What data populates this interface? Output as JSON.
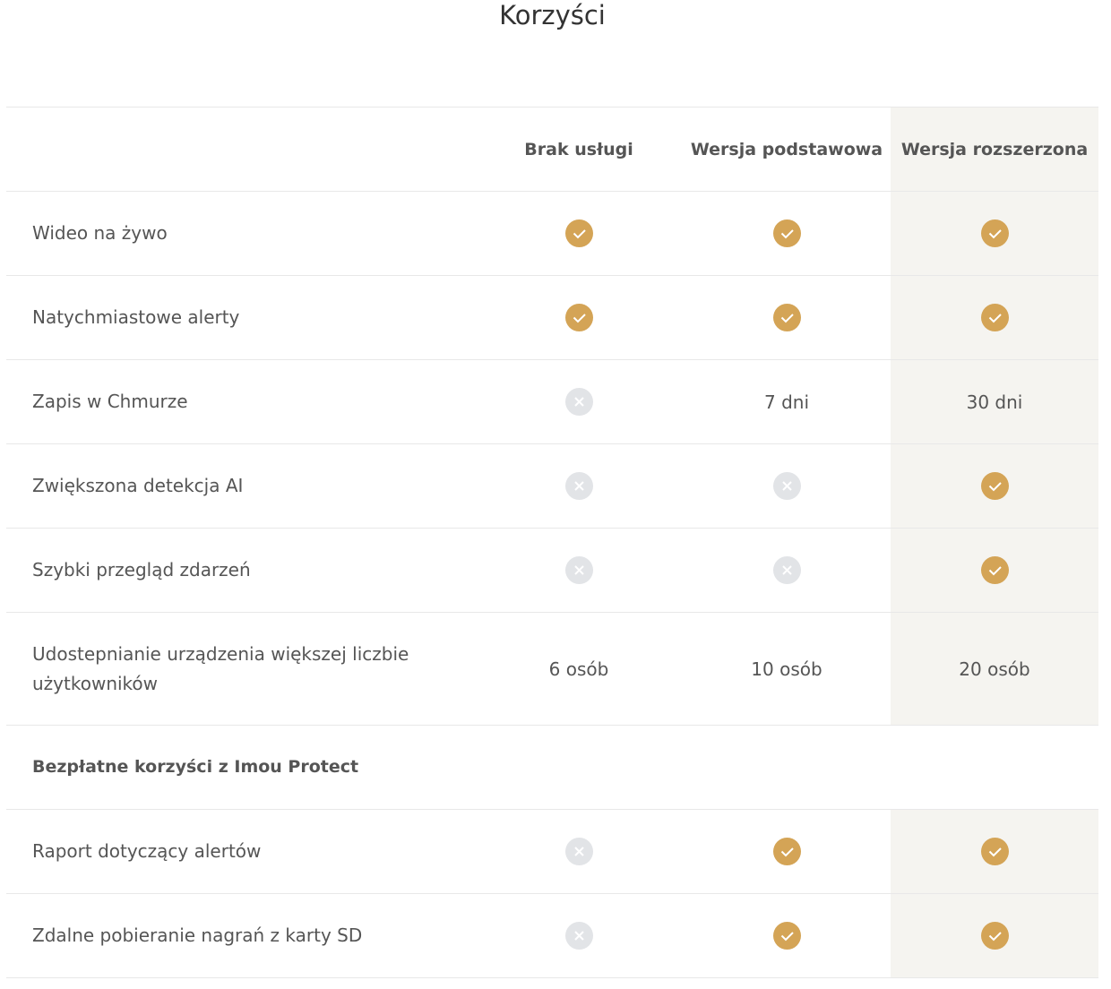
{
  "title": "Korzyści",
  "colors": {
    "accent": "#d4a456",
    "unavailable": "#e2e4e7",
    "highlight": "#f5f4f0"
  },
  "columns": [
    "Brak usługi",
    "Wersja podstawowa",
    "Wersja rozszerzona"
  ],
  "rows": [
    {
      "label": "Wideo na żywo",
      "values": [
        "check",
        "check",
        "check"
      ]
    },
    {
      "label": "Natychmiastowe alerty",
      "values": [
        "check",
        "check",
        "check"
      ]
    },
    {
      "label": "Zapis w Chmurze",
      "values": [
        "x",
        "7 dni",
        "30 dni"
      ]
    },
    {
      "label": "Zwiększona detekcja AI",
      "values": [
        "x",
        "x",
        "check"
      ]
    },
    {
      "label": "Szybki przegląd zdarzeń",
      "values": [
        "x",
        "x",
        "check"
      ]
    },
    {
      "label": "Udostepnianie urządzenia większej liczbie użytkowników",
      "values": [
        "6 osób",
        "10 osób",
        "20 osób"
      ]
    }
  ],
  "section": "Bezpłatne korzyści z Imou Protect",
  "free_rows": [
    {
      "label": "Raport dotyczący alertów",
      "values": [
        "x",
        "check",
        "check"
      ]
    },
    {
      "label": "Zdalne pobieranie nagrań z karty SD",
      "values": [
        "x",
        "check",
        "check"
      ]
    }
  ]
}
